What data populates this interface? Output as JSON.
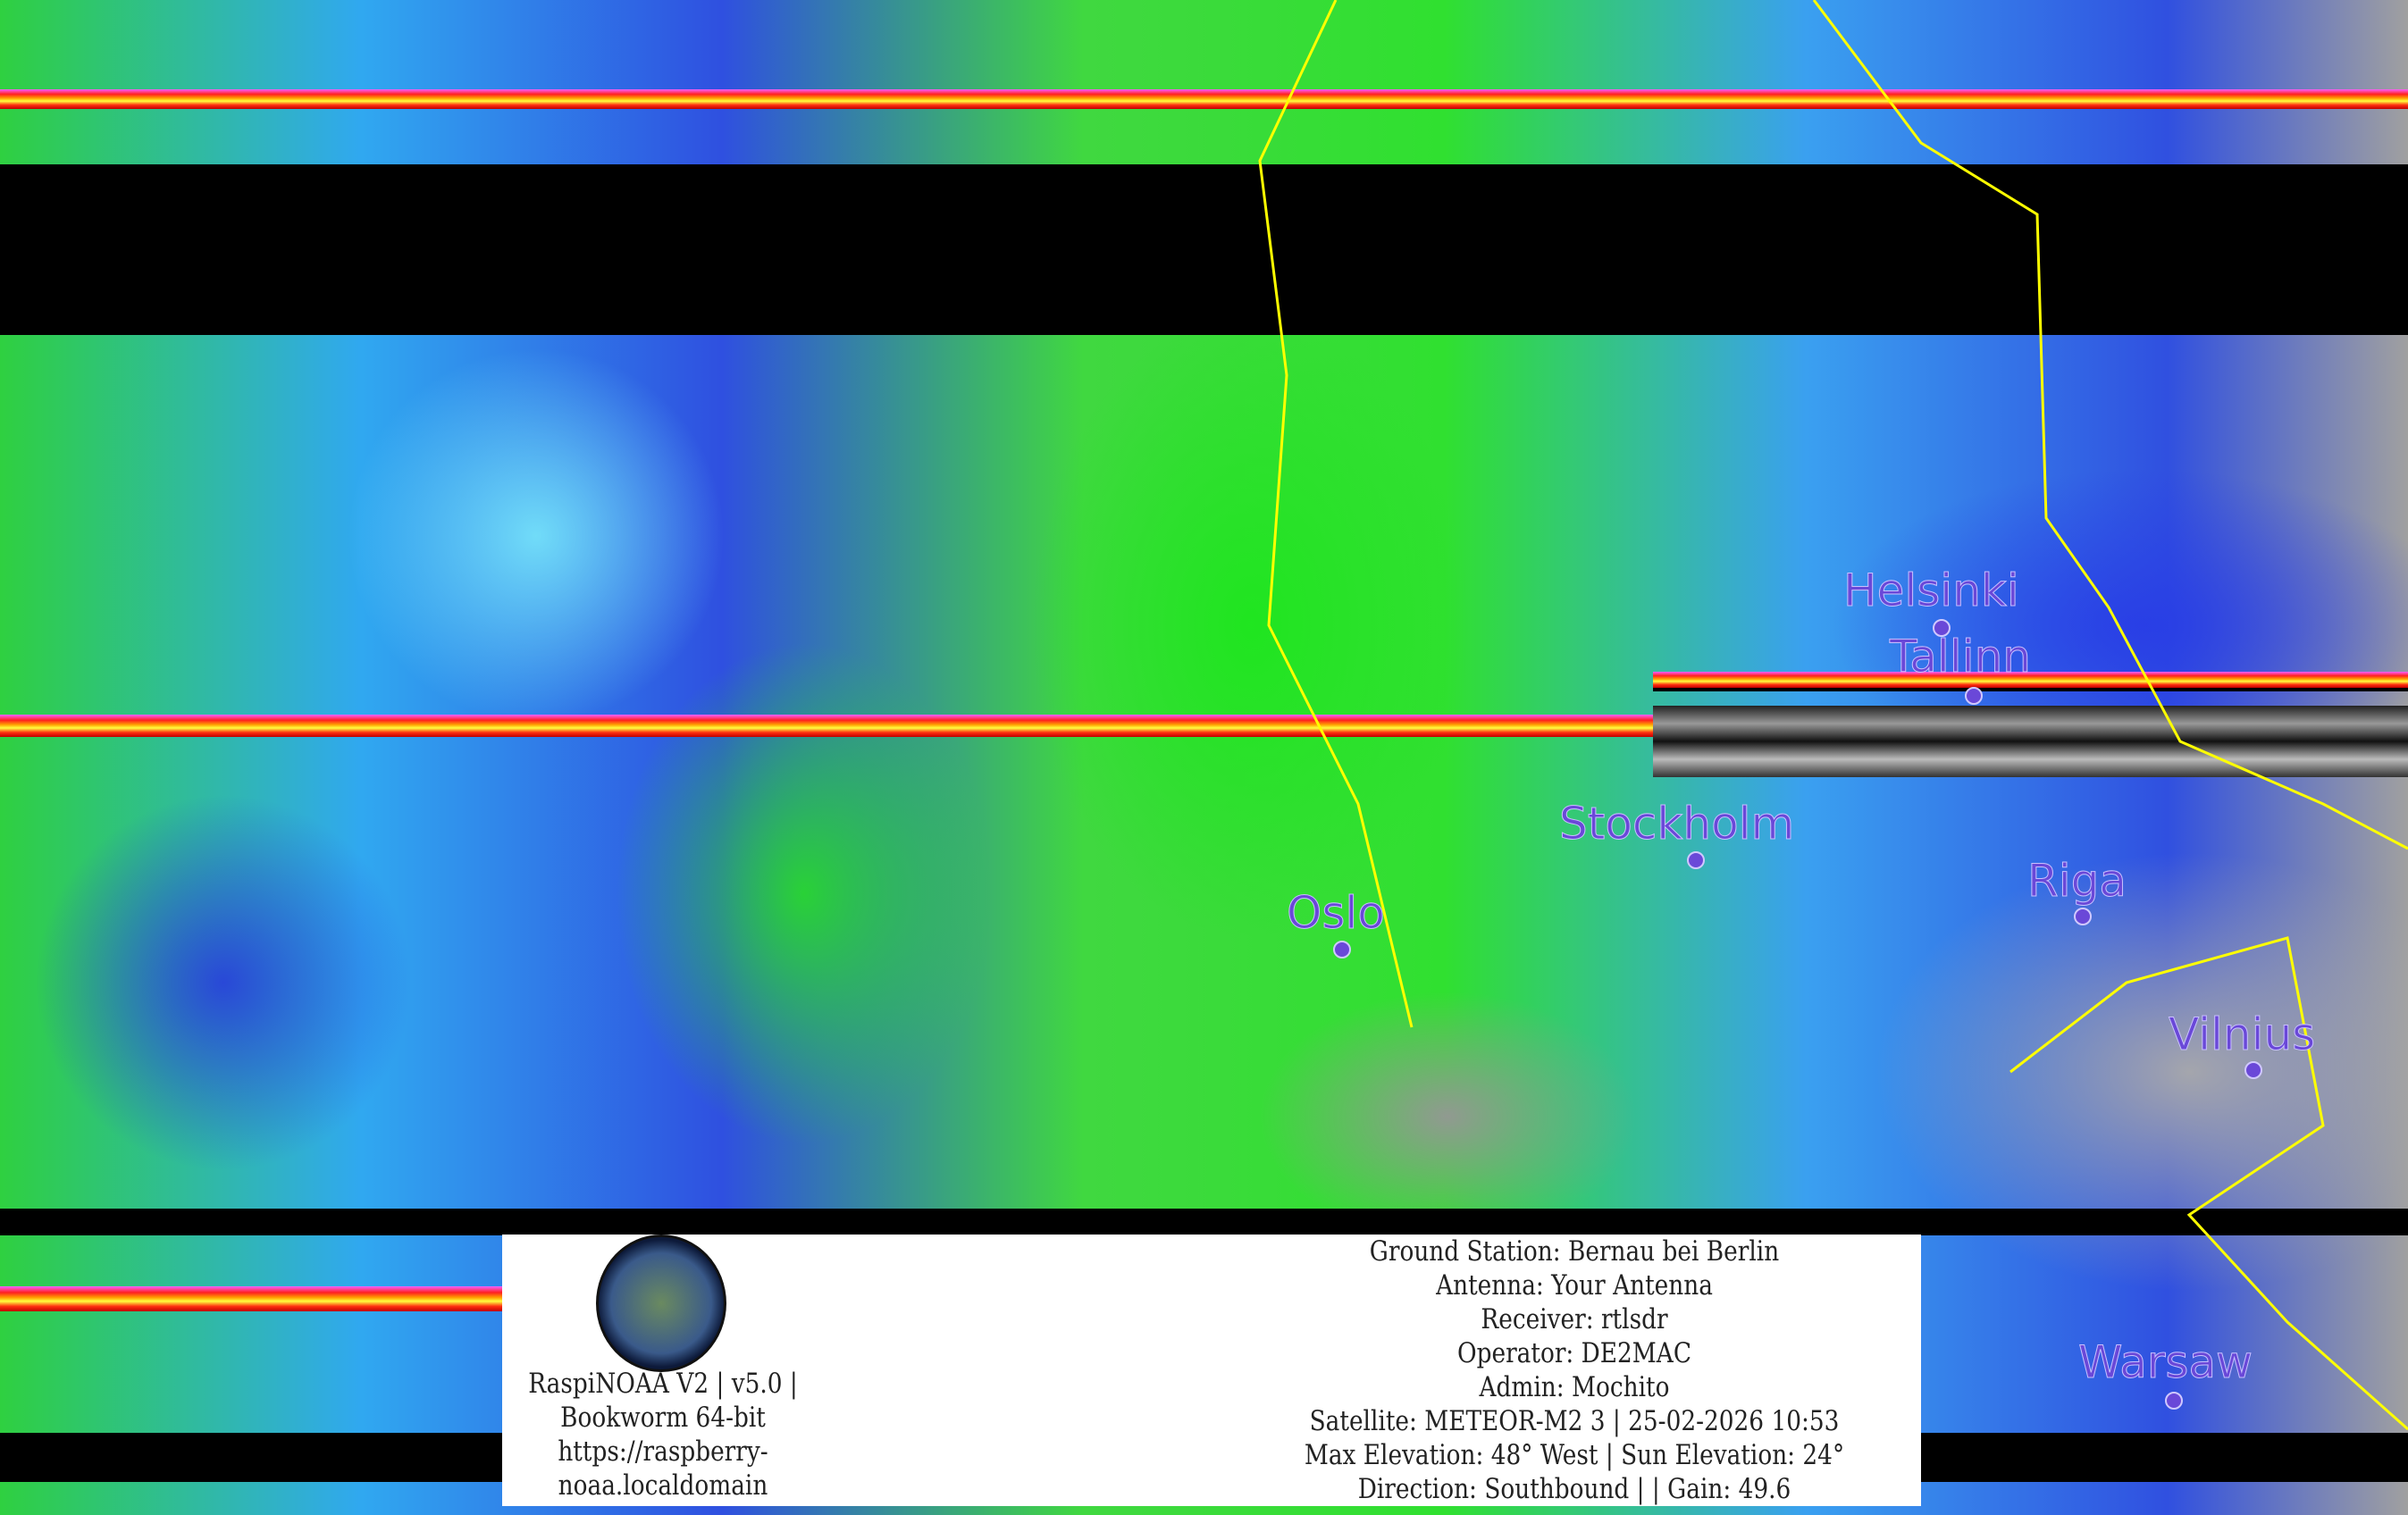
{
  "cities": [
    {
      "name": "Helsinki"
    },
    {
      "name": "Tallinn"
    },
    {
      "name": "Stockholm"
    },
    {
      "name": "Oslo"
    },
    {
      "name": "Riga"
    },
    {
      "name": "Vilnius"
    },
    {
      "name": "Warsaw"
    }
  ],
  "info_box": {
    "software": [
      "RaspiNOAA V2 | v5.0 |",
      "Bookworm 64-bit",
      "https://raspberry-",
      "noaa.localdomain"
    ],
    "details": [
      "Ground Station: Bernau bei Berlin",
      "Antenna: Your Antenna",
      "Receiver: rtlsdr",
      "Operator: DE2MAC",
      "Admin: Mochito",
      "Satellite: METEOR-M2 3 | 25-02-2026 10:53",
      "Max Elevation: 48° West | Sun Elevation: 24°",
      "Direction: Southbound | | Gain: 49.6"
    ]
  },
  "colors": {
    "city_label": "#6a48d8",
    "border": "#ffff00"
  }
}
